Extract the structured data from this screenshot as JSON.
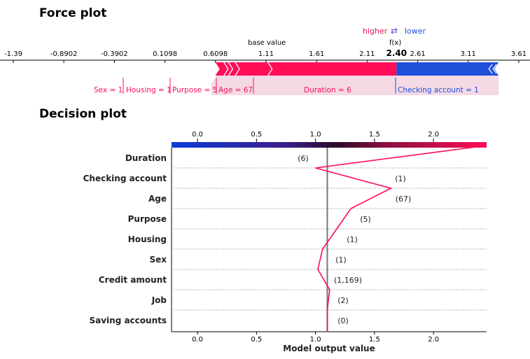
{
  "titles": {
    "force": "Force plot",
    "decision": "Decision plot"
  },
  "chart_data": [
    {
      "type": "force",
      "title": "Force plot",
      "legend": {
        "higher": "higher",
        "arrow": "⇄",
        "lower": "lower",
        "higher_color": "#ff0d57",
        "lower_color": "#1e88e5"
      },
      "base_value_label": "base value",
      "fx_label": "f(x)",
      "fx_value": 2.4,
      "fx_value_label": "2.40",
      "base_value": 0.995,
      "axis_ticks": [
        "-1.39",
        "-0.8902",
        "-0.3902",
        "0.1098",
        "0.6098",
        "1.11",
        "1.61",
        "2.11",
        "2.61",
        "3.11",
        "3.61"
      ],
      "xlim": [
        -1.39,
        3.61
      ],
      "contributions": [
        {
          "feature": "Sex",
          "label": "Sex = 1",
          "start": 0.623,
          "end": 0.7,
          "direction": "higher"
        },
        {
          "feature": "Housing",
          "label": "Housing = 1",
          "start": 0.7,
          "end": 0.745,
          "direction": "higher"
        },
        {
          "feature": "Purpose",
          "label": "Purpose = 5",
          "start": 0.745,
          "end": 0.812,
          "direction": "higher"
        },
        {
          "feature": "Age",
          "label": "Age = 67",
          "start": 0.812,
          "end": 1.135,
          "direction": "higher"
        },
        {
          "feature": "Duration",
          "label": "Duration = 6",
          "start": 1.135,
          "end": 2.4,
          "direction": "higher"
        },
        {
          "feature": "Checking account",
          "label": "Checking account = 1",
          "start": 2.4,
          "end": 3.41,
          "direction": "lower"
        }
      ],
      "colors": {
        "higher": "#ff0d57",
        "lower": "#1e4fd8"
      }
    },
    {
      "type": "line",
      "title": "Decision plot",
      "xlabel": "Model output value",
      "ylabel": "",
      "xlim": [
        -0.22,
        2.45
      ],
      "x_ticks": [
        0.0,
        0.5,
        1.0,
        1.5,
        2.0
      ],
      "x_tick_labels": [
        "0.0",
        "0.5",
        "1.0",
        "1.5",
        "2.0"
      ],
      "base_value": 1.1,
      "features": [
        "Duration",
        "Checking account",
        "Age",
        "Purpose",
        "Housing",
        "Sex",
        "Credit amount",
        "Job",
        "Saving accounts"
      ],
      "feature_values": [
        "(6)",
        "(1)",
        "(67)",
        "(5)",
        "(1)",
        "(1)",
        "(1,169)",
        "(2)",
        "(0)"
      ],
      "path_x": [
        2.45,
        1.0,
        1.64,
        1.3,
        1.18,
        1.06,
        1.02,
        1.12,
        1.1,
        1.1
      ],
      "line_color": "#ff0d57",
      "colorbar": {
        "from_color": "#1e4fd8",
        "to_color": "#ff0d57"
      }
    }
  ]
}
